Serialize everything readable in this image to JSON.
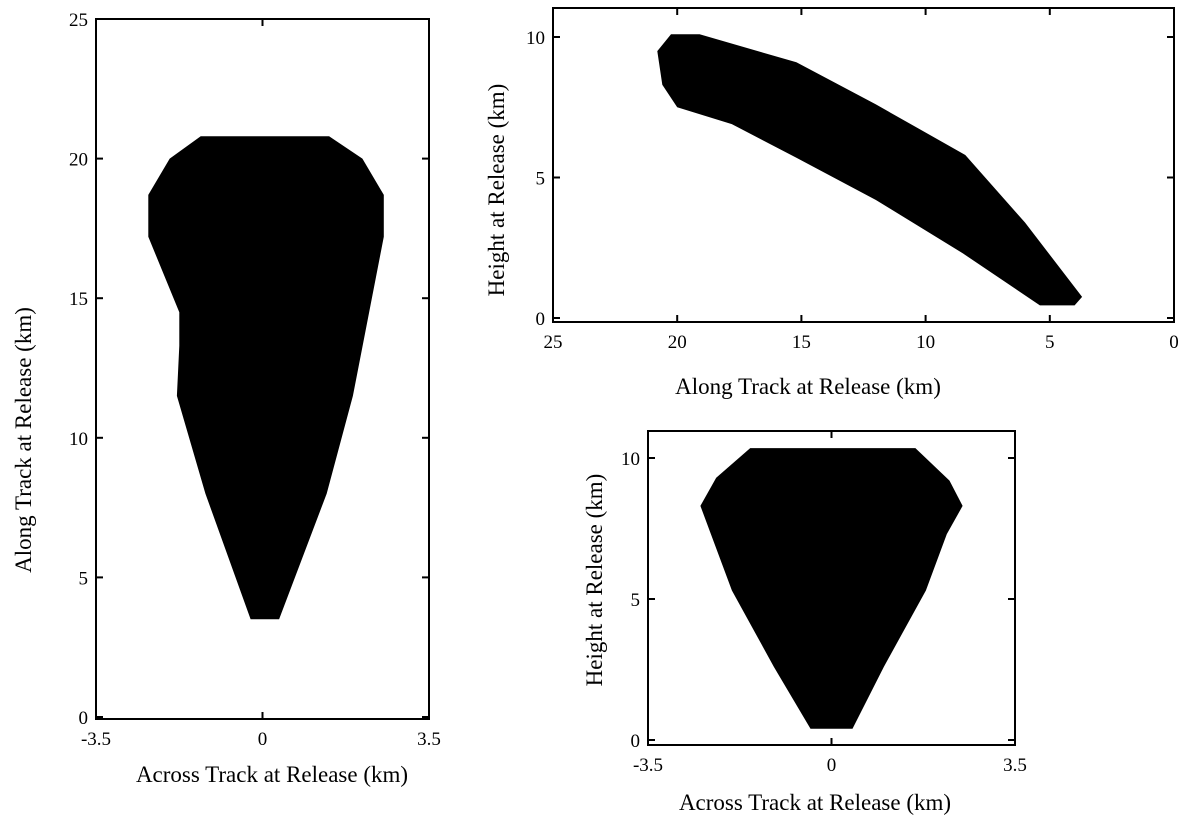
{
  "chart_data": [
    {
      "type": "area",
      "xlabel": "Across Track at Release (km)",
      "ylabel": "Along Track at Release (km)",
      "xlim": [
        -3.5,
        3.5
      ],
      "ylim": [
        0,
        25
      ],
      "xticks": [
        -3.5,
        0,
        3.5
      ],
      "yticks": [
        0,
        5,
        10,
        15,
        20,
        25
      ],
      "xtick_labels": [
        "-3.5",
        "0",
        "3.5"
      ],
      "ytick_labels": [
        "0",
        "5",
        "10",
        "15",
        "20",
        "25"
      ],
      "grid": false,
      "fill": "#000000",
      "region": [
        [
          -0.25,
          3.5
        ],
        [
          0.35,
          3.5
        ],
        [
          1.35,
          8.0
        ],
        [
          1.9,
          11.5
        ],
        [
          2.55,
          17.2
        ],
        [
          2.55,
          18.7
        ],
        [
          2.1,
          20.0
        ],
        [
          1.4,
          20.8
        ],
        [
          -1.3,
          20.8
        ],
        [
          -1.95,
          20.0
        ],
        [
          -2.4,
          18.7
        ],
        [
          -2.4,
          17.2
        ],
        [
          -1.75,
          14.5
        ],
        [
          -1.75,
          13.3
        ],
        [
          -1.8,
          11.5
        ],
        [
          -1.2,
          8.0
        ],
        [
          -0.25,
          3.5
        ]
      ]
    },
    {
      "type": "area",
      "xlabel": "Along Track at Release (km)",
      "ylabel": "Height at Release (km)",
      "xlim": [
        25,
        0
      ],
      "ylim": [
        0,
        10
      ],
      "xticks": [
        25,
        20,
        15,
        10,
        5,
        0
      ],
      "yticks": [
        0,
        5,
        10
      ],
      "xtick_labels": [
        "25",
        "20",
        "15",
        "10",
        "5",
        "0"
      ],
      "ytick_labels": [
        "0",
        "5",
        "10"
      ],
      "grid": false,
      "fill": "#000000",
      "region": [
        [
          20.25,
          10.1
        ],
        [
          19.1,
          10.1
        ],
        [
          15.2,
          9.1
        ],
        [
          12.0,
          7.6
        ],
        [
          8.4,
          5.8
        ],
        [
          6.0,
          3.4
        ],
        [
          3.7,
          0.75
        ],
        [
          4.0,
          0.45
        ],
        [
          5.4,
          0.45
        ],
        [
          8.5,
          2.3
        ],
        [
          12.0,
          4.2
        ],
        [
          15.2,
          5.7
        ],
        [
          17.8,
          6.9
        ],
        [
          20.0,
          7.5
        ],
        [
          20.6,
          8.3
        ],
        [
          20.8,
          9.5
        ],
        [
          20.25,
          10.1
        ]
      ]
    },
    {
      "type": "area",
      "xlabel": "Across Track at Release (km)",
      "ylabel": "Height at Release (km)",
      "xlim": [
        -3.5,
        3.5
      ],
      "ylim": [
        0,
        10
      ],
      "xticks": [
        -3.5,
        0,
        3.5
      ],
      "yticks": [
        0,
        5,
        10
      ],
      "xtick_labels": [
        "-3.5",
        "0",
        "3.5"
      ],
      "ytick_labels": [
        "0",
        "5",
        "10"
      ],
      "grid": false,
      "fill": "#000000",
      "region": [
        [
          -0.4,
          0.4
        ],
        [
          0.4,
          0.4
        ],
        [
          1.0,
          2.6
        ],
        [
          1.8,
          5.3
        ],
        [
          2.2,
          7.3
        ],
        [
          2.5,
          8.3
        ],
        [
          2.25,
          9.2
        ],
        [
          1.6,
          10.35
        ],
        [
          -1.55,
          10.35
        ],
        [
          -2.2,
          9.3
        ],
        [
          -2.5,
          8.3
        ],
        [
          -2.3,
          7.3
        ],
        [
          -1.9,
          5.3
        ],
        [
          -1.1,
          2.6
        ],
        [
          -0.4,
          0.4
        ]
      ]
    }
  ]
}
